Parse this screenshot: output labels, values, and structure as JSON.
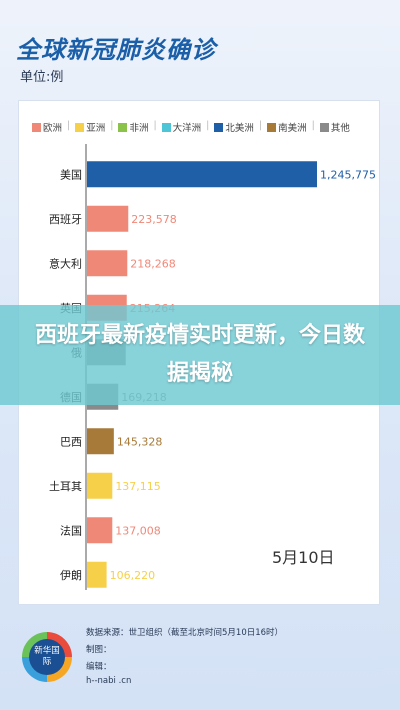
{
  "header": {
    "title": "全球新冠肺炎确诊",
    "unit": "单位:例"
  },
  "legend": [
    {
      "label": "欧洲",
      "color": "#f08878"
    },
    {
      "label": "亚洲",
      "color": "#f7d04a"
    },
    {
      "label": "非洲",
      "color": "#8bc34a"
    },
    {
      "label": "大洋洲",
      "color": "#4ec5d6"
    },
    {
      "label": "北美洲",
      "color": "#1f5fa8"
    },
    {
      "label": "南美洲",
      "color": "#a87a3a"
    },
    {
      "label": "其他",
      "color": "#8a8a8a"
    }
  ],
  "chart_data": {
    "type": "bar",
    "orientation": "horizontal",
    "categories": [
      "美国",
      "西班牙",
      "意大利",
      "英国",
      "俄罗斯",
      "德国",
      "巴西",
      "土耳其",
      "法国",
      "伊朗"
    ],
    "values": [
      1245775,
      223578,
      218268,
      215264,
      209688,
      169218,
      145328,
      137115,
      137008,
      106220
    ],
    "value_labels": [
      "1,245,775",
      "223,578",
      "218,268",
      "215,264",
      "",
      "169,218",
      "145,328",
      "137,115",
      "137,008",
      "106,220"
    ],
    "regions": [
      "北美洲",
      "欧洲",
      "欧洲",
      "欧洲",
      "欧洲",
      "欧洲",
      "南美洲",
      "亚洲",
      "欧洲",
      "亚洲"
    ],
    "colors": [
      "#1f5fa8",
      "#f08878",
      "#f08878",
      "#f08878",
      "#8a8a8a",
      "#8a8a8a",
      "#a87a3a",
      "#f7d04a",
      "#f08878",
      "#f7d04a"
    ],
    "visible_category_labels": [
      "美国",
      "西班牙",
      "意大利",
      "英国",
      "俄",
      "德国",
      "巴西",
      "土耳其",
      "法国",
      "伊朗"
    ],
    "xlim": [
      0,
      1245775
    ]
  },
  "date": "5月10日",
  "banner": {
    "text": "西班牙最新疫情实时更新，今日数据揭秘"
  },
  "footer": {
    "logo_text": "新华国际",
    "source": "数据来源：世卫组织（截至北京时间5月10日16时）",
    "graphic": "制图：",
    "editor": "编辑：",
    "site": "h--nabi .cn"
  }
}
